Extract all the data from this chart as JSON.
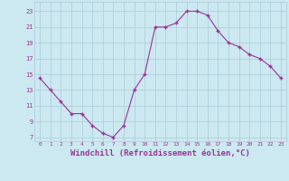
{
  "x": [
    0,
    1,
    2,
    3,
    4,
    5,
    6,
    7,
    8,
    9,
    10,
    11,
    12,
    13,
    14,
    15,
    16,
    17,
    18,
    19,
    20,
    21,
    22,
    23
  ],
  "y": [
    14.5,
    13.0,
    11.5,
    10.0,
    10.0,
    8.5,
    7.5,
    7.0,
    8.5,
    13.0,
    15.0,
    21.0,
    21.0,
    21.5,
    23.0,
    23.0,
    22.5,
    20.5,
    19.0,
    18.5,
    17.5,
    17.0,
    16.0,
    14.5
  ],
  "line_color": "#993399",
  "marker": "+",
  "marker_size": 3.5,
  "linewidth": 0.8,
  "xlabel": "Windchill (Refroidissement éolien,°C)",
  "xlabel_fontsize": 6.5,
  "bg_color": "#cce8f0",
  "grid_color": "#aaccd8",
  "tick_label_color": "#993399",
  "axis_label_color": "#993399",
  "xlim": [
    -0.5,
    23.5
  ],
  "ylim": [
    6.5,
    24.2
  ],
  "yticks": [
    7,
    9,
    11,
    13,
    15,
    17,
    19,
    21,
    23
  ],
  "xticks": [
    0,
    1,
    2,
    3,
    4,
    5,
    6,
    7,
    8,
    9,
    10,
    11,
    12,
    13,
    14,
    15,
    16,
    17,
    18,
    19,
    20,
    21,
    22,
    23
  ]
}
